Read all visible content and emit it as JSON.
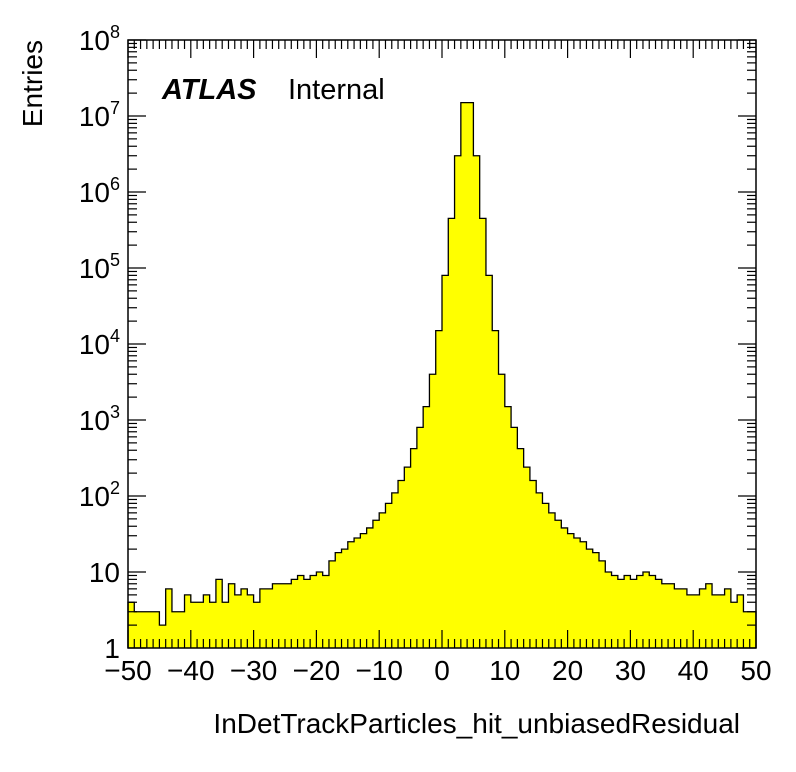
{
  "chart_data": {
    "type": "histogram",
    "title": "",
    "xlabel": "InDetTrackParticles_hit_unbiasedResidual",
    "ylabel": "Entries",
    "yscale": "log",
    "xlim": [
      -50,
      50
    ],
    "ylim": [
      1,
      100000000
    ],
    "grid": false,
    "fill_color": "#ffff00",
    "line_color": "#000000",
    "label": {
      "experiment": "ATLAS",
      "status": "Internal"
    },
    "x_tick_labels": [
      "−50",
      "−40",
      "−30",
      "−20",
      "−10",
      "0",
      "10",
      "20",
      "30",
      "40",
      "50"
    ],
    "x_ticks": [
      -50,
      -40,
      -30,
      -20,
      -10,
      0,
      10,
      20,
      30,
      40,
      50
    ],
    "y_ticks": [
      {
        "value": 1,
        "base": "1",
        "exp": ""
      },
      {
        "value": 10,
        "base": "10",
        "exp": ""
      },
      {
        "value": 100,
        "base": "10",
        "exp": "2"
      },
      {
        "value": 1000,
        "base": "10",
        "exp": "3"
      },
      {
        "value": 10000,
        "base": "10",
        "exp": "4"
      },
      {
        "value": 100000,
        "base": "10",
        "exp": "5"
      },
      {
        "value": 1000000,
        "base": "10",
        "exp": "6"
      },
      {
        "value": 10000000,
        "base": "10",
        "exp": "7"
      },
      {
        "value": 100000000,
        "base": "10",
        "exp": "8"
      }
    ],
    "bin_edges_start": -50,
    "bin_width": 1,
    "values": [
      4,
      3,
      3,
      3,
      3,
      2,
      6,
      3,
      3,
      5,
      4,
      4,
      5,
      4,
      8,
      4,
      7,
      5,
      6,
      5,
      4,
      6,
      6,
      7,
      7,
      7,
      8,
      9,
      8,
      9,
      10,
      9,
      14,
      18,
      20,
      25,
      28,
      32,
      38,
      48,
      60,
      80,
      110,
      160,
      240,
      420,
      800,
      1500,
      4000,
      15000,
      80000,
      450000,
      3000000,
      15000000,
      15000000,
      3000000,
      450000,
      80000,
      15000,
      4000,
      1500,
      800,
      420,
      240,
      160,
      110,
      80,
      60,
      48,
      38,
      32,
      28,
      25,
      20,
      18,
      14,
      10,
      9,
      8,
      9,
      8,
      9,
      10,
      9,
      8,
      7,
      7,
      6,
      6,
      5,
      5,
      6,
      7,
      5,
      5,
      6,
      4,
      5,
      3,
      3
    ]
  }
}
